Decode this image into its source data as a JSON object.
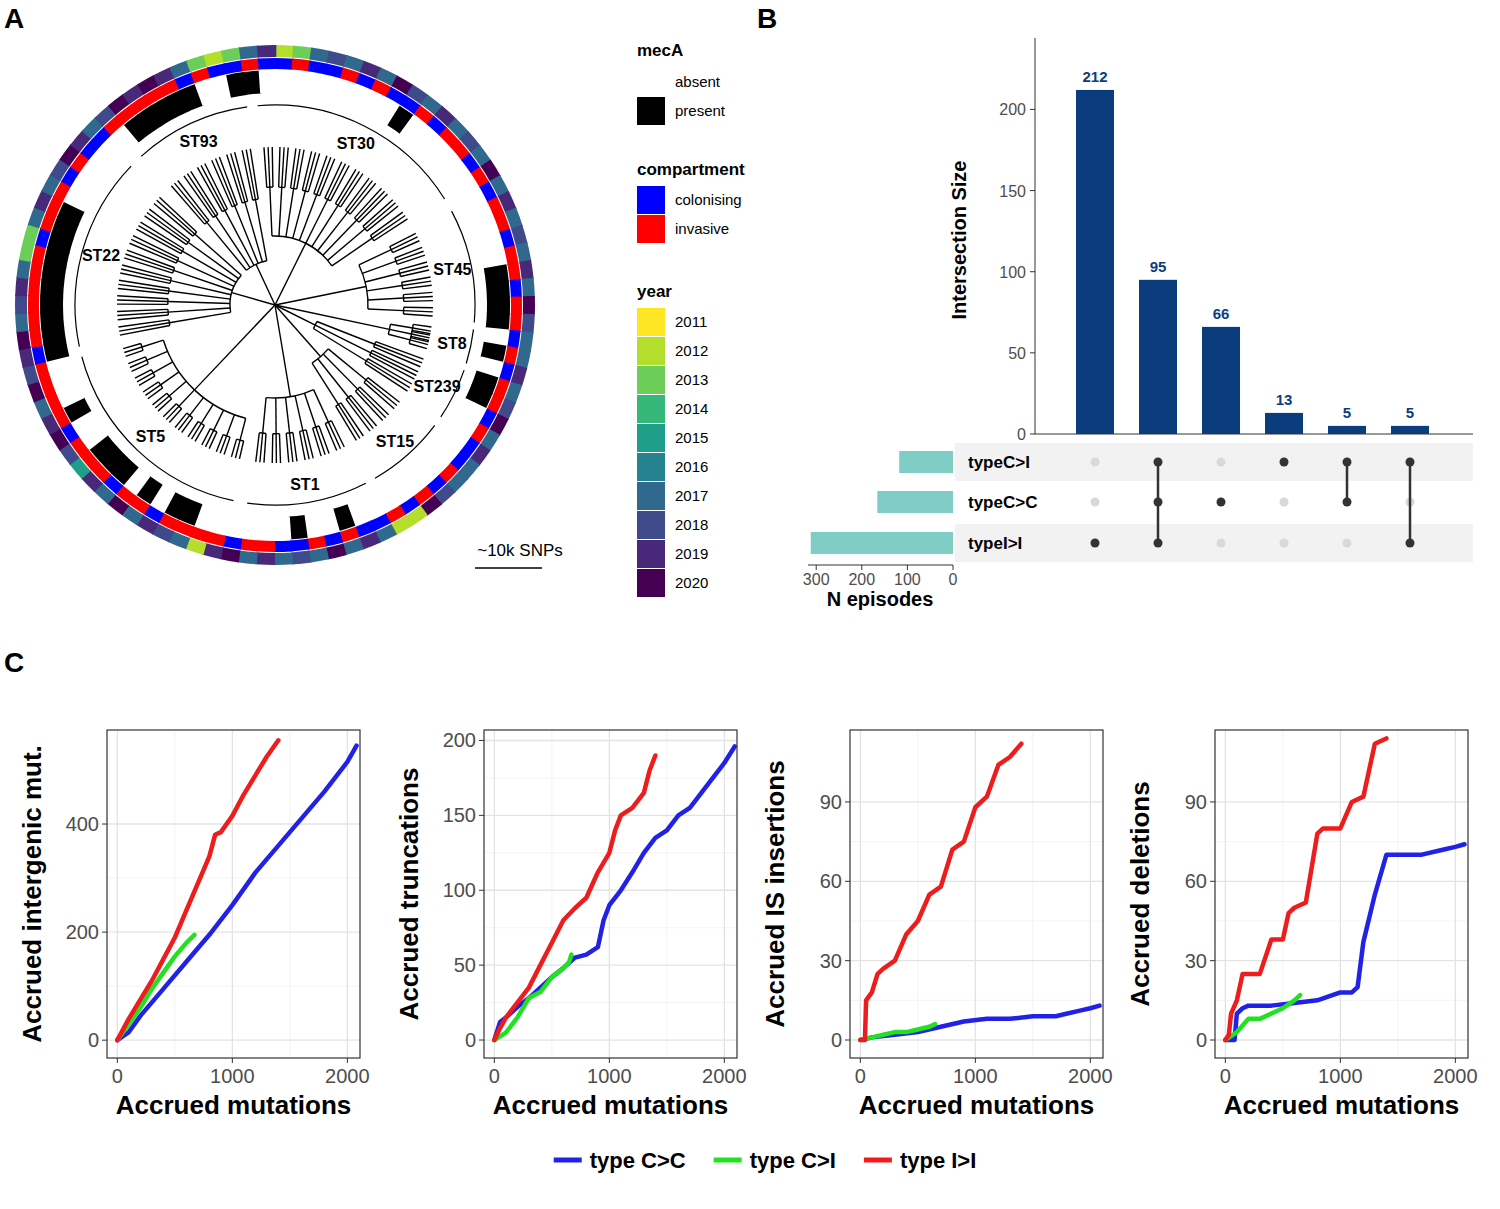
{
  "chart_data": [
    {
      "type": "tree",
      "panel": "A",
      "scale_bar": "~10k SNPs",
      "clades": [
        {
          "label": "ST93",
          "start": 318,
          "end": 352
        },
        {
          "label": "ST30",
          "start": -5,
          "end": 58
        },
        {
          "label": "ST45",
          "start": 62,
          "end": 95
        },
        {
          "label": "ST8",
          "start": 97,
          "end": 107
        },
        {
          "label": "ST239",
          "start": 109,
          "end": 124
        },
        {
          "label": "ST15",
          "start": 127,
          "end": 150
        },
        {
          "label": "ST1",
          "start": 153,
          "end": 188
        },
        {
          "label": "ST5",
          "start": 192,
          "end": 255
        },
        {
          "label": "ST22",
          "start": 258,
          "end": 314
        }
      ],
      "rings": [
        {
          "title": "mecA",
          "categories": [
            "absent",
            "present"
          ],
          "colors": [
            "#ffffff",
            "#000000"
          ],
          "values": [
            "absent",
            "absent",
            "absent",
            "absent",
            "absent",
            "absent",
            "absent",
            "absent",
            "present",
            "absent",
            "absent",
            "absent",
            "absent",
            "absent",
            "absent",
            "absent",
            "absent",
            "absent",
            "absent",
            "absent",
            "present",
            "present",
            "present",
            "present",
            "absent",
            "present",
            "absent",
            "present",
            "present",
            "absent",
            "absent",
            "absent",
            "absent",
            "absent",
            "absent",
            "absent",
            "absent",
            "absent",
            "absent",
            "absent",
            "present",
            "absent",
            "absent",
            "present",
            "absent",
            "absent",
            "absent",
            "absent",
            "absent",
            "absent",
            "present",
            "present",
            "absent",
            "present",
            "absent",
            "present",
            "present",
            "present",
            "absent",
            "absent",
            "present",
            "absent",
            "absent",
            "absent",
            "present",
            "present",
            "present",
            "present",
            "present",
            "present",
            "present",
            "present",
            "present",
            "present",
            "absent",
            "absent",
            "absent",
            "absent",
            "absent",
            "absent",
            "present",
            "present",
            "present",
            "present",
            "present",
            "absent",
            "absent",
            "present",
            "present",
            "absent"
          ]
        },
        {
          "title": "compartment",
          "categories": [
            "colonising",
            "invasive"
          ],
          "colors": [
            "#0000ff",
            "#ff0000"
          ],
          "values": [
            "colonising",
            "invasive",
            "colonising",
            "colonising",
            "invasive",
            "colonising",
            "invasive",
            "colonising",
            "colonising",
            "invasive",
            "colonising",
            "invasive",
            "invasive",
            "colonising",
            "invasive",
            "colonising",
            "invasive",
            "invasive",
            "colonising",
            "invasive",
            "invasive",
            "colonising",
            "invasive",
            "invasive",
            "colonising",
            "invasive",
            "colonising",
            "invasive",
            "invasive",
            "colonising",
            "invasive",
            "colonising",
            "colonising",
            "invasive",
            "colonising",
            "invasive",
            "colonising",
            "invasive",
            "colonising",
            "colonising",
            "invasive",
            "colonising",
            "invasive",
            "colonising",
            "colonising",
            "invasive",
            "invasive",
            "colonising",
            "invasive",
            "invasive",
            "invasive",
            "invasive",
            "colonising",
            "invasive",
            "invasive",
            "colonising",
            "invasive",
            "invasive",
            "invasive",
            "colonising",
            "invasive",
            "invasive",
            "invasive",
            "invasive",
            "colonising",
            "invasive",
            "invasive",
            "invasive",
            "invasive",
            "invasive",
            "invasive",
            "colonising",
            "invasive",
            "invasive",
            "invasive",
            "colonising",
            "invasive",
            "colonising",
            "colonising",
            "invasive",
            "invasive",
            "invasive",
            "invasive",
            "invasive",
            "colonising",
            "invasive",
            "colonising",
            "colonising",
            "invasive",
            "colonising"
          ]
        },
        {
          "title": "year",
          "categories": [
            2011,
            2012,
            2013,
            2014,
            2015,
            2016,
            2017,
            2018,
            2019,
            2020
          ],
          "colors": [
            "#fde725",
            "#b4de2c",
            "#6dcd59",
            "#35b779",
            "#1f9e89",
            "#26828e",
            "#31688e",
            "#3e4a89",
            "#482878",
            "#440154"
          ],
          "values": [
            2012,
            2013,
            2017,
            2018,
            2017,
            2019,
            2017,
            2020,
            2018,
            2017,
            2019,
            2017,
            2018,
            2017,
            2020,
            2017,
            2019,
            2017,
            2018,
            2017,
            2019,
            2017,
            2020,
            2018,
            2017,
            2017,
            2019,
            2017,
            2018,
            2020,
            2017,
            2019,
            2017,
            2017,
            2018,
            2020,
            2012,
            2012,
            2017,
            2019,
            2017,
            2020,
            2017,
            2018,
            2017,
            2019,
            2017,
            2020,
            2019,
            2012,
            2017,
            2018,
            2019,
            2017,
            2020,
            2017,
            2019,
            2015,
            2018,
            2020,
            2019,
            2017,
            2020,
            2018,
            2019,
            2020,
            2017,
            2018,
            2019,
            2017,
            2013,
            2013,
            2017,
            2019,
            2017,
            2018,
            2020,
            2019,
            2017,
            2018,
            2020,
            2019,
            2020,
            2019,
            2017,
            2013,
            2012,
            2013,
            2017,
            2019
          ]
        }
      ]
    },
    {
      "type": "upset",
      "panel": "B",
      "ylabel": "Intersection Size",
      "xlabel": "N episodes",
      "values": [
        212,
        95,
        66,
        13,
        5,
        5
      ],
      "data_labels": true,
      "color": "#0b3d7e",
      "ylim": [
        0,
        244
      ],
      "yticks": [
        0,
        50,
        100,
        150,
        200
      ],
      "sets": [
        {
          "name": "typeC>I",
          "size": 118
        },
        {
          "name": "typeC>C",
          "size": 166
        },
        {
          "name": "typeI>I",
          "size": 312
        }
      ],
      "members": [
        [
          2
        ],
        [
          0,
          1,
          2
        ],
        [
          1
        ],
        [
          0
        ],
        [
          0,
          1
        ],
        [
          0,
          2
        ]
      ],
      "set_color": "#7fcdc4",
      "xlim": [
        0,
        318
      ],
      "xticks": [
        0,
        100,
        200,
        300
      ]
    },
    {
      "type": "line",
      "panel": "C",
      "xlabel": "Accrued mutations",
      "ylabel": "Accrued intergenic mut.",
      "xlim": [
        -90,
        2110
      ],
      "xticks": [
        0,
        1000,
        2000
      ],
      "ylim": [
        -33,
        574
      ],
      "yticks": [
        0,
        200,
        400
      ],
      "grid": true,
      "legend": "bottom",
      "series": [
        {
          "name": "type C>C",
          "color": "#2222e6",
          "x": [
            0,
            100,
            200,
            400,
            600,
            800,
            1000,
            1200,
            1400,
            1600,
            1800,
            2000,
            2080
          ],
          "values": [
            0,
            15,
            45,
            95,
            145,
            195,
            250,
            310,
            360,
            410,
            460,
            515,
            545
          ]
        },
        {
          "name": "type C>I",
          "color": "#22e022",
          "x": [
            0,
            100,
            200,
            300,
            400,
            500,
            600,
            670
          ],
          "values": [
            0,
            30,
            60,
            95,
            125,
            155,
            180,
            195
          ]
        },
        {
          "name": "type I>I",
          "color": "#ee1c1c",
          "x": [
            0,
            50,
            100,
            200,
            300,
            400,
            500,
            600,
            700,
            800,
            850,
            900,
            1000,
            1100,
            1200,
            1300,
            1400
          ],
          "values": [
            0,
            20,
            40,
            75,
            110,
            150,
            190,
            240,
            290,
            340,
            380,
            385,
            415,
            455,
            490,
            525,
            555
          ]
        }
      ]
    },
    {
      "type": "line",
      "xlabel": "Accrued mutations",
      "ylabel": "Accrued truncations",
      "xlim": [
        -90,
        2110
      ],
      "xticks": [
        0,
        1000,
        2000
      ],
      "ylim": [
        -12,
        207
      ],
      "yticks": [
        0,
        50,
        100,
        150,
        200
      ],
      "grid": true,
      "series": [
        {
          "color": "#2222e6",
          "x": [
            0,
            50,
            100,
            200,
            300,
            400,
            500,
            600,
            700,
            800,
            900,
            950,
            1000,
            1100,
            1200,
            1300,
            1400,
            1500,
            1600,
            1700,
            1800,
            1900,
            2000,
            2090
          ],
          "values": [
            0,
            12,
            15,
            22,
            28,
            35,
            42,
            48,
            55,
            57,
            62,
            80,
            90,
            100,
            112,
            125,
            135,
            140,
            150,
            155,
            165,
            175,
            185,
            196
          ]
        },
        {
          "color": "#22e022",
          "x": [
            0,
            100,
            200,
            300,
            400,
            500,
            600,
            650,
            670
          ],
          "values": [
            0,
            5,
            15,
            28,
            32,
            42,
            48,
            52,
            57
          ]
        },
        {
          "color": "#ee1c1c",
          "x": [
            0,
            50,
            100,
            200,
            300,
            400,
            500,
            600,
            700,
            800,
            900,
            1000,
            1050,
            1100,
            1200,
            1300,
            1350,
            1400
          ],
          "values": [
            0,
            8,
            15,
            25,
            35,
            50,
            65,
            80,
            88,
            95,
            112,
            125,
            140,
            150,
            155,
            165,
            180,
            190
          ]
        }
      ]
    },
    {
      "type": "line",
      "xlabel": "Accrued mutations",
      "ylabel": "Accrued IS insertions",
      "xlim": [
        -90,
        2110
      ],
      "xticks": [
        0,
        1000,
        2000
      ],
      "ylim": [
        -6.8,
        117.2
      ],
      "yticks": [
        0,
        30,
        60,
        90
      ],
      "grid": true,
      "series": [
        {
          "color": "#2222e6",
          "x": [
            0,
            100,
            300,
            500,
            700,
            900,
            1100,
            1300,
            1500,
            1700,
            1800,
            1900,
            2000,
            2080
          ],
          "values": [
            0,
            1,
            2,
            3,
            5,
            7,
            8,
            8,
            9,
            9,
            10,
            11,
            12,
            13
          ]
        },
        {
          "color": "#22e022",
          "x": [
            0,
            100,
            200,
            300,
            400,
            500,
            600,
            650
          ],
          "values": [
            0,
            1,
            2,
            3,
            3,
            4,
            5,
            6
          ]
        },
        {
          "color": "#ee1c1c",
          "x": [
            0,
            40,
            50,
            100,
            150,
            200,
            300,
            400,
            500,
            600,
            700,
            800,
            900,
            1000,
            1100,
            1200,
            1300,
            1400
          ],
          "values": [
            0,
            0,
            15,
            18,
            25,
            27,
            30,
            40,
            45,
            55,
            58,
            72,
            75,
            88,
            92,
            104,
            107,
            112
          ]
        }
      ]
    },
    {
      "type": "line",
      "xlabel": "Accrued mutations",
      "ylabel": "Accrued deletions",
      "xlim": [
        -90,
        2110
      ],
      "xticks": [
        0,
        1000,
        2000
      ],
      "ylim": [
        -6.8,
        117.2
      ],
      "yticks": [
        0,
        30,
        60,
        90
      ],
      "grid": true,
      "series": [
        {
          "color": "#2222e6",
          "x": [
            0,
            80,
            100,
            150,
            200,
            400,
            600,
            800,
            1000,
            1100,
            1150,
            1200,
            1300,
            1400,
            1500,
            1700,
            1900,
            2000,
            2080
          ],
          "values": [
            0,
            0,
            10,
            12,
            13,
            13,
            14,
            15,
            18,
            18,
            20,
            37,
            55,
            70,
            70,
            70,
            72,
            73,
            74
          ]
        },
        {
          "color": "#22e022",
          "x": [
            0,
            100,
            200,
            300,
            400,
            500,
            600,
            650
          ],
          "values": [
            0,
            3,
            8,
            8,
            10,
            12,
            15,
            17
          ]
        },
        {
          "color": "#ee1c1c",
          "x": [
            0,
            30,
            50,
            100,
            150,
            200,
            300,
            400,
            500,
            550,
            600,
            700,
            800,
            850,
            900,
            1000,
            1100,
            1200,
            1300,
            1400
          ],
          "values": [
            0,
            2,
            10,
            15,
            25,
            25,
            25,
            38,
            38,
            48,
            50,
            52,
            78,
            80,
            80,
            80,
            90,
            92,
            112,
            114
          ]
        }
      ]
    }
  ]
}
